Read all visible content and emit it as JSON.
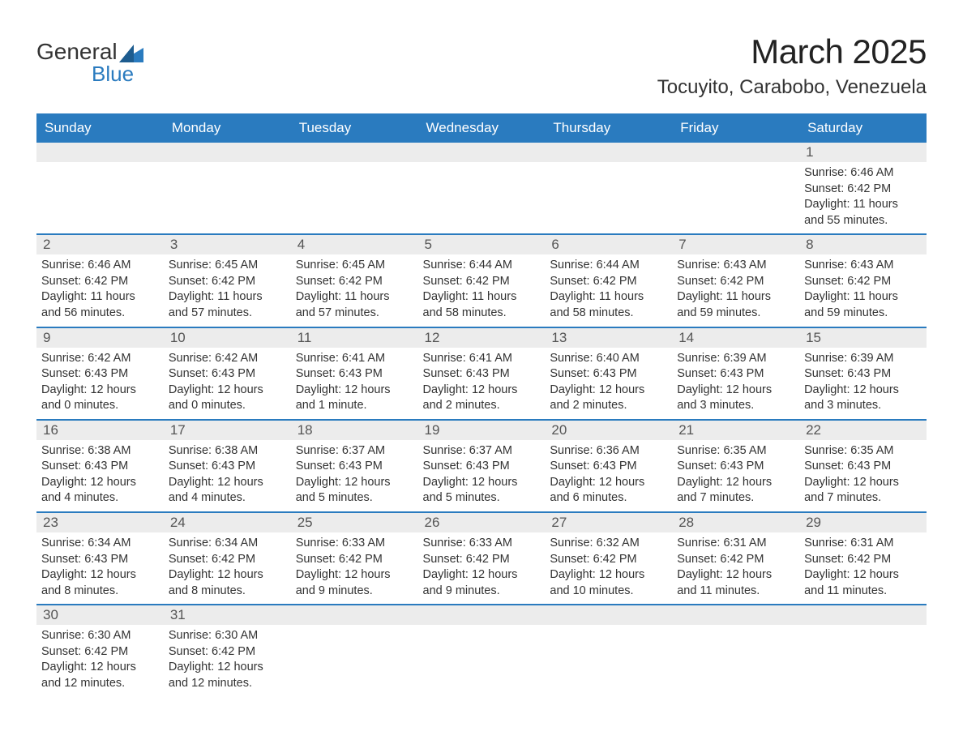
{
  "logo": {
    "text1": "General",
    "text2": "Blue"
  },
  "title": "March 2025",
  "location": "Tocuyito, Carabobo, Venezuela",
  "colors": {
    "header_bg": "#2a7bbf",
    "header_text": "#ffffff",
    "daynum_bg": "#ececec",
    "body_text": "#333333",
    "rule": "#2a7bbf"
  },
  "fonts": {
    "title_size_pt": 32,
    "location_size_pt": 18,
    "weekday_size_pt": 13,
    "daynum_size_pt": 13,
    "body_size_pt": 11
  },
  "weekday_headers": [
    "Sunday",
    "Monday",
    "Tuesday",
    "Wednesday",
    "Thursday",
    "Friday",
    "Saturday"
  ],
  "weeks": [
    [
      null,
      null,
      null,
      null,
      null,
      null,
      {
        "n": "1",
        "sr": "Sunrise: 6:46 AM",
        "ss": "Sunset: 6:42 PM",
        "d1": "Daylight: 11 hours",
        "d2": "and 55 minutes."
      }
    ],
    [
      {
        "n": "2",
        "sr": "Sunrise: 6:46 AM",
        "ss": "Sunset: 6:42 PM",
        "d1": "Daylight: 11 hours",
        "d2": "and 56 minutes."
      },
      {
        "n": "3",
        "sr": "Sunrise: 6:45 AM",
        "ss": "Sunset: 6:42 PM",
        "d1": "Daylight: 11 hours",
        "d2": "and 57 minutes."
      },
      {
        "n": "4",
        "sr": "Sunrise: 6:45 AM",
        "ss": "Sunset: 6:42 PM",
        "d1": "Daylight: 11 hours",
        "d2": "and 57 minutes."
      },
      {
        "n": "5",
        "sr": "Sunrise: 6:44 AM",
        "ss": "Sunset: 6:42 PM",
        "d1": "Daylight: 11 hours",
        "d2": "and 58 minutes."
      },
      {
        "n": "6",
        "sr": "Sunrise: 6:44 AM",
        "ss": "Sunset: 6:42 PM",
        "d1": "Daylight: 11 hours",
        "d2": "and 58 minutes."
      },
      {
        "n": "7",
        "sr": "Sunrise: 6:43 AM",
        "ss": "Sunset: 6:42 PM",
        "d1": "Daylight: 11 hours",
        "d2": "and 59 minutes."
      },
      {
        "n": "8",
        "sr": "Sunrise: 6:43 AM",
        "ss": "Sunset: 6:42 PM",
        "d1": "Daylight: 11 hours",
        "d2": "and 59 minutes."
      }
    ],
    [
      {
        "n": "9",
        "sr": "Sunrise: 6:42 AM",
        "ss": "Sunset: 6:43 PM",
        "d1": "Daylight: 12 hours",
        "d2": "and 0 minutes."
      },
      {
        "n": "10",
        "sr": "Sunrise: 6:42 AM",
        "ss": "Sunset: 6:43 PM",
        "d1": "Daylight: 12 hours",
        "d2": "and 0 minutes."
      },
      {
        "n": "11",
        "sr": "Sunrise: 6:41 AM",
        "ss": "Sunset: 6:43 PM",
        "d1": "Daylight: 12 hours",
        "d2": "and 1 minute."
      },
      {
        "n": "12",
        "sr": "Sunrise: 6:41 AM",
        "ss": "Sunset: 6:43 PM",
        "d1": "Daylight: 12 hours",
        "d2": "and 2 minutes."
      },
      {
        "n": "13",
        "sr": "Sunrise: 6:40 AM",
        "ss": "Sunset: 6:43 PM",
        "d1": "Daylight: 12 hours",
        "d2": "and 2 minutes."
      },
      {
        "n": "14",
        "sr": "Sunrise: 6:39 AM",
        "ss": "Sunset: 6:43 PM",
        "d1": "Daylight: 12 hours",
        "d2": "and 3 minutes."
      },
      {
        "n": "15",
        "sr": "Sunrise: 6:39 AM",
        "ss": "Sunset: 6:43 PM",
        "d1": "Daylight: 12 hours",
        "d2": "and 3 minutes."
      }
    ],
    [
      {
        "n": "16",
        "sr": "Sunrise: 6:38 AM",
        "ss": "Sunset: 6:43 PM",
        "d1": "Daylight: 12 hours",
        "d2": "and 4 minutes."
      },
      {
        "n": "17",
        "sr": "Sunrise: 6:38 AM",
        "ss": "Sunset: 6:43 PM",
        "d1": "Daylight: 12 hours",
        "d2": "and 4 minutes."
      },
      {
        "n": "18",
        "sr": "Sunrise: 6:37 AM",
        "ss": "Sunset: 6:43 PM",
        "d1": "Daylight: 12 hours",
        "d2": "and 5 minutes."
      },
      {
        "n": "19",
        "sr": "Sunrise: 6:37 AM",
        "ss": "Sunset: 6:43 PM",
        "d1": "Daylight: 12 hours",
        "d2": "and 5 minutes."
      },
      {
        "n": "20",
        "sr": "Sunrise: 6:36 AM",
        "ss": "Sunset: 6:43 PM",
        "d1": "Daylight: 12 hours",
        "d2": "and 6 minutes."
      },
      {
        "n": "21",
        "sr": "Sunrise: 6:35 AM",
        "ss": "Sunset: 6:43 PM",
        "d1": "Daylight: 12 hours",
        "d2": "and 7 minutes."
      },
      {
        "n": "22",
        "sr": "Sunrise: 6:35 AM",
        "ss": "Sunset: 6:43 PM",
        "d1": "Daylight: 12 hours",
        "d2": "and 7 minutes."
      }
    ],
    [
      {
        "n": "23",
        "sr": "Sunrise: 6:34 AM",
        "ss": "Sunset: 6:43 PM",
        "d1": "Daylight: 12 hours",
        "d2": "and 8 minutes."
      },
      {
        "n": "24",
        "sr": "Sunrise: 6:34 AM",
        "ss": "Sunset: 6:42 PM",
        "d1": "Daylight: 12 hours",
        "d2": "and 8 minutes."
      },
      {
        "n": "25",
        "sr": "Sunrise: 6:33 AM",
        "ss": "Sunset: 6:42 PM",
        "d1": "Daylight: 12 hours",
        "d2": "and 9 minutes."
      },
      {
        "n": "26",
        "sr": "Sunrise: 6:33 AM",
        "ss": "Sunset: 6:42 PM",
        "d1": "Daylight: 12 hours",
        "d2": "and 9 minutes."
      },
      {
        "n": "27",
        "sr": "Sunrise: 6:32 AM",
        "ss": "Sunset: 6:42 PM",
        "d1": "Daylight: 12 hours",
        "d2": "and 10 minutes."
      },
      {
        "n": "28",
        "sr": "Sunrise: 6:31 AM",
        "ss": "Sunset: 6:42 PM",
        "d1": "Daylight: 12 hours",
        "d2": "and 11 minutes."
      },
      {
        "n": "29",
        "sr": "Sunrise: 6:31 AM",
        "ss": "Sunset: 6:42 PM",
        "d1": "Daylight: 12 hours",
        "d2": "and 11 minutes."
      }
    ],
    [
      {
        "n": "30",
        "sr": "Sunrise: 6:30 AM",
        "ss": "Sunset: 6:42 PM",
        "d1": "Daylight: 12 hours",
        "d2": "and 12 minutes."
      },
      {
        "n": "31",
        "sr": "Sunrise: 6:30 AM",
        "ss": "Sunset: 6:42 PM",
        "d1": "Daylight: 12 hours",
        "d2": "and 12 minutes."
      },
      null,
      null,
      null,
      null,
      null
    ]
  ]
}
